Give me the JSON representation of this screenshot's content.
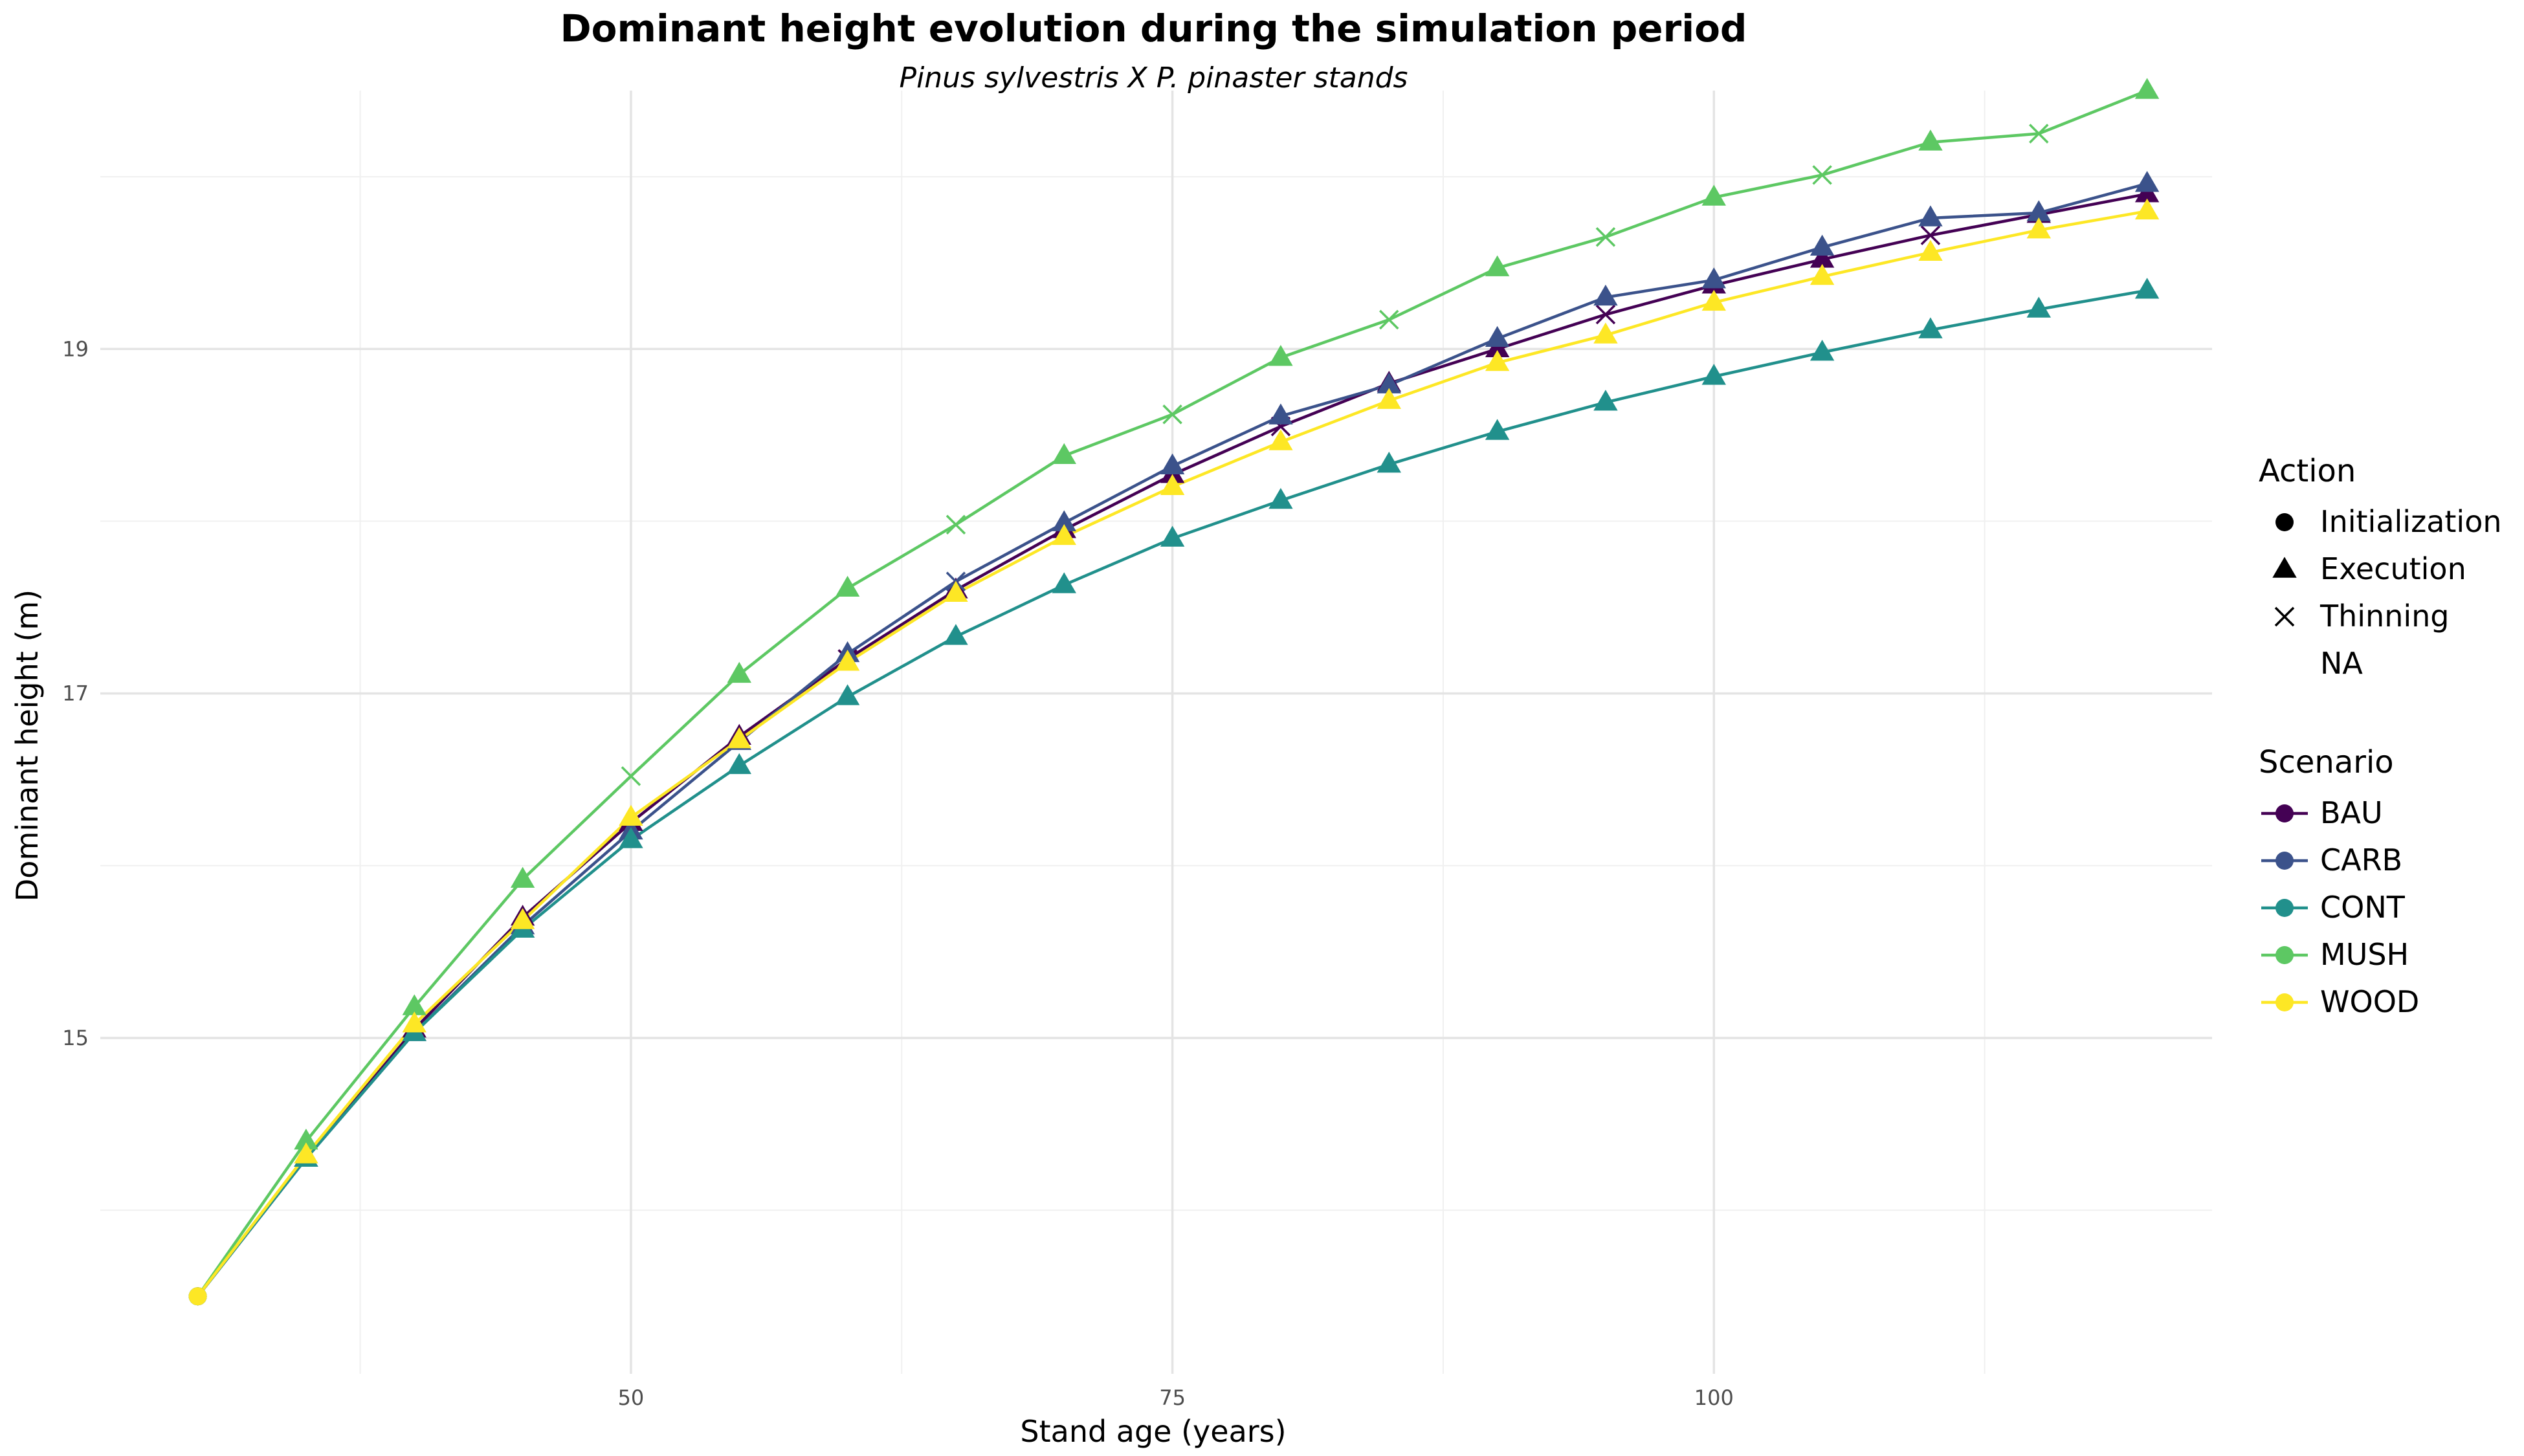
{
  "title": "Dominant height evolution during the simulation period",
  "subtitle": "Pinus sylvestris X P. pinaster stands",
  "legend_action": {
    "title": "Action",
    "items": [
      {
        "label": "Initialization",
        "shape": "circle"
      },
      {
        "label": "Execution",
        "shape": "triangle"
      },
      {
        "label": "Thinning",
        "shape": "cross"
      },
      {
        "label": "NA",
        "shape": "none"
      }
    ]
  },
  "legend_scenario": {
    "title": "Scenario",
    "items": [
      {
        "label": "BAU",
        "color": "#440154"
      },
      {
        "label": "CARB",
        "color": "#3B528B"
      },
      {
        "label": "CONT",
        "color": "#21908C"
      },
      {
        "label": "MUSH",
        "color": "#5DC863"
      },
      {
        "label": "WOOD",
        "color": "#FDE725"
      }
    ]
  },
  "chart_data": {
    "type": "line",
    "title": "Dominant height evolution during the simulation period",
    "subtitle": "Pinus sylvestris X P. pinaster stands",
    "xlabel": "Stand age (years)",
    "ylabel": "Dominant height (m)",
    "xlim": [
      25.5,
      123
    ],
    "ylim": [
      13.05,
      20.5
    ],
    "xticks": [
      50,
      75,
      100
    ],
    "yticks": [
      15,
      17,
      19
    ],
    "grid": true,
    "legend_position": "right",
    "x": [
      30,
      35,
      40,
      45,
      50,
      55,
      60,
      65,
      70,
      75,
      80,
      85,
      90,
      95,
      100,
      105,
      110,
      115,
      120
    ],
    "series": [
      {
        "name": "BAU",
        "color": "#440154",
        "values": [
          13.5,
          14.3,
          15.05,
          15.7,
          16.25,
          16.75,
          17.2,
          17.6,
          17.95,
          18.27,
          18.55,
          18.8,
          19.0,
          19.2,
          19.37,
          19.52,
          19.66,
          19.78,
          19.9
        ],
        "actions": [
          "Initialization",
          "Execution",
          "Execution",
          "Execution",
          "Execution",
          "Execution",
          "Thinning",
          "Execution",
          "Execution",
          "Execution",
          "Thinning",
          "Execution",
          "Execution",
          "Thinning",
          "Execution",
          "Execution",
          "Thinning",
          "Execution",
          "Execution"
        ]
      },
      {
        "name": "CARB",
        "color": "#3B528B",
        "values": [
          13.5,
          14.3,
          15.03,
          15.65,
          16.2,
          16.72,
          17.23,
          17.65,
          17.99,
          18.32,
          18.61,
          18.79,
          19.06,
          19.3,
          19.4,
          19.59,
          19.76,
          19.79,
          19.96
        ],
        "actions": [
          "Initialization",
          "Execution",
          "Execution",
          "Execution",
          "Execution",
          "Execution",
          "Execution",
          "Thinning",
          "Execution",
          "Execution",
          "Execution",
          "Execution",
          "Execution",
          "Execution",
          "Execution",
          "Execution",
          "Execution",
          "Execution",
          "Execution"
        ]
      },
      {
        "name": "CONT",
        "color": "#21908C",
        "values": [
          13.5,
          14.3,
          15.03,
          15.63,
          16.15,
          16.58,
          16.98,
          17.33,
          17.63,
          17.9,
          18.12,
          18.33,
          18.52,
          18.69,
          18.84,
          18.98,
          19.11,
          19.23,
          19.34
        ],
        "actions": [
          "Initialization",
          "Execution",
          "Execution",
          "Execution",
          "Execution",
          "Execution",
          "Execution",
          "Execution",
          "Execution",
          "Execution",
          "Execution",
          "Execution",
          "Execution",
          "Execution",
          "Execution",
          "Execution",
          "Execution",
          "Execution",
          "Execution"
        ]
      },
      {
        "name": "MUSH",
        "color": "#5DC863",
        "values": [
          13.5,
          14.4,
          15.18,
          15.92,
          16.52,
          17.11,
          17.61,
          17.98,
          18.38,
          18.62,
          18.95,
          19.17,
          19.47,
          19.65,
          19.88,
          20.01,
          20.2,
          20.25,
          20.5
        ],
        "actions": [
          "Initialization",
          "Execution",
          "Execution",
          "Execution",
          "Thinning",
          "Execution",
          "Execution",
          "Thinning",
          "Execution",
          "Thinning",
          "Execution",
          "Thinning",
          "Execution",
          "Thinning",
          "Execution",
          "Thinning",
          "Execution",
          "Thinning",
          "Execution"
        ]
      },
      {
        "name": "WOOD",
        "color": "#FDE725",
        "values": [
          13.5,
          14.32,
          15.08,
          15.68,
          16.28,
          16.73,
          17.18,
          17.58,
          17.91,
          18.2,
          18.46,
          18.7,
          18.92,
          19.08,
          19.27,
          19.42,
          19.56,
          19.69,
          19.8
        ],
        "actions": [
          "Initialization",
          "Execution",
          "Execution",
          "Execution",
          "Execution",
          "Execution",
          "Execution",
          "Execution",
          "Execution",
          "Execution",
          "Execution",
          "Execution",
          "Execution",
          "Execution",
          "Execution",
          "Execution",
          "Execution",
          "Execution",
          "Execution"
        ]
      }
    ]
  }
}
